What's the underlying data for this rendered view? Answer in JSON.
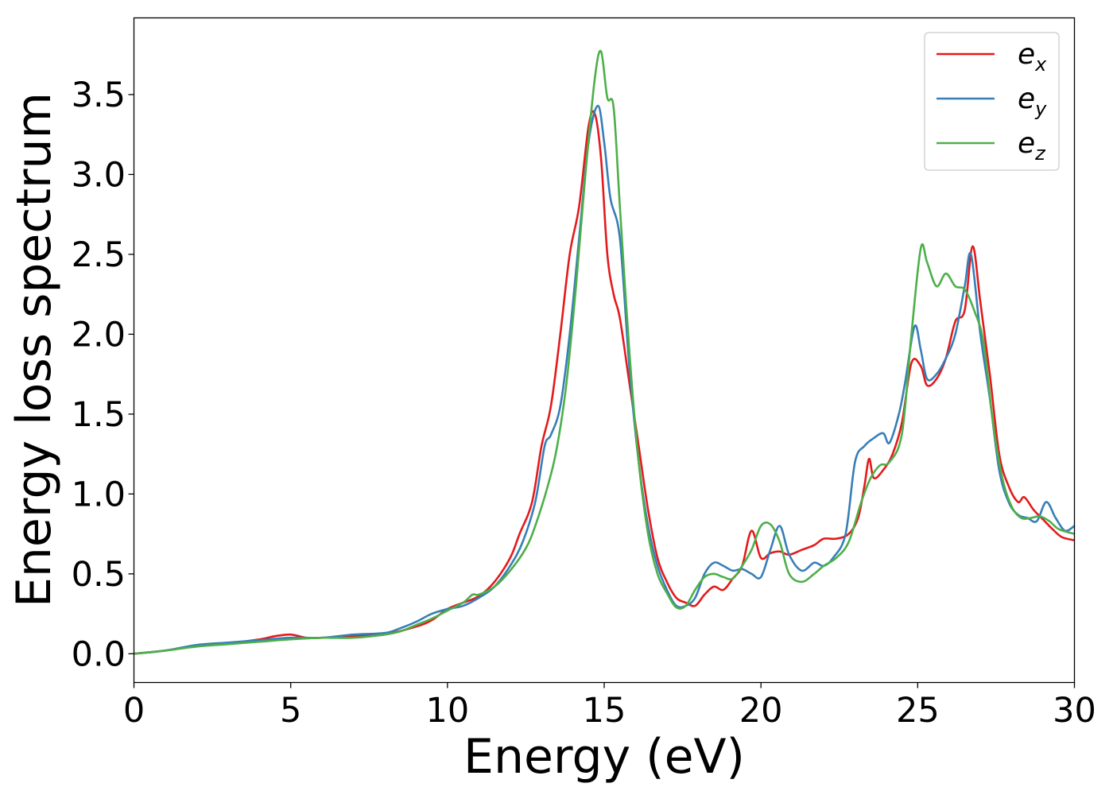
{
  "chart_data": {
    "type": "line",
    "xlabel": "Energy (eV)",
    "ylabel": "Energy loss spectrum",
    "xlim": [
      0,
      30
    ],
    "ylim": [
      -0.18,
      3.98
    ],
    "xticks": [
      0,
      5,
      10,
      15,
      20,
      25,
      30
    ],
    "xtick_labels": [
      "0",
      "5",
      "10",
      "15",
      "20",
      "25",
      "30"
    ],
    "yticks": [
      0.0,
      0.5,
      1.0,
      1.5,
      2.0,
      2.5,
      3.0,
      3.5
    ],
    "ytick_labels": [
      "0.0",
      "0.5",
      "1.0",
      "1.5",
      "2.0",
      "2.5",
      "3.0",
      "3.5"
    ],
    "grid": false,
    "legend_position": "top-right",
    "series": [
      {
        "name": "e_x",
        "label_main": "e",
        "label_sub": "x",
        "color": "#e41a1c",
        "points": [
          [
            0,
            0
          ],
          [
            1,
            0.02
          ],
          [
            2,
            0.05
          ],
          [
            3,
            0.065
          ],
          [
            4,
            0.09
          ],
          [
            4.5,
            0.11
          ],
          [
            5,
            0.12
          ],
          [
            5.5,
            0.1
          ],
          [
            6,
            0.1
          ],
          [
            7,
            0.11
          ],
          [
            8,
            0.12
          ],
          [
            9,
            0.17
          ],
          [
            9.5,
            0.21
          ],
          [
            10,
            0.28
          ],
          [
            10.5,
            0.32
          ],
          [
            11,
            0.36
          ],
          [
            11.5,
            0.45
          ],
          [
            12,
            0.6
          ],
          [
            12.3,
            0.75
          ],
          [
            12.7,
            0.95
          ],
          [
            13,
            1.3
          ],
          [
            13.3,
            1.55
          ],
          [
            13.6,
            2.0
          ],
          [
            13.9,
            2.5
          ],
          [
            14.2,
            2.8
          ],
          [
            14.5,
            3.3
          ],
          [
            14.7,
            3.38
          ],
          [
            14.9,
            3.1
          ],
          [
            15.1,
            2.5
          ],
          [
            15.3,
            2.25
          ],
          [
            15.5,
            2.1
          ],
          [
            15.8,
            1.7
          ],
          [
            16.1,
            1.3
          ],
          [
            16.4,
            0.9
          ],
          [
            16.7,
            0.6
          ],
          [
            17,
            0.45
          ],
          [
            17.3,
            0.35
          ],
          [
            17.6,
            0.32
          ],
          [
            17.9,
            0.3
          ],
          [
            18.2,
            0.37
          ],
          [
            18.5,
            0.42
          ],
          [
            18.8,
            0.4
          ],
          [
            19.1,
            0.47
          ],
          [
            19.4,
            0.55
          ],
          [
            19.7,
            0.77
          ],
          [
            20,
            0.6
          ],
          [
            20.3,
            0.63
          ],
          [
            20.6,
            0.64
          ],
          [
            20.9,
            0.62
          ],
          [
            21.3,
            0.65
          ],
          [
            21.7,
            0.68
          ],
          [
            22,
            0.72
          ],
          [
            22.4,
            0.72
          ],
          [
            22.8,
            0.75
          ],
          [
            23.1,
            0.85
          ],
          [
            23.3,
            1.05
          ],
          [
            23.45,
            1.22
          ],
          [
            23.6,
            1.1
          ],
          [
            23.9,
            1.15
          ],
          [
            24.2,
            1.25
          ],
          [
            24.5,
            1.45
          ],
          [
            24.8,
            1.82
          ],
          [
            25.1,
            1.8
          ],
          [
            25.3,
            1.68
          ],
          [
            25.6,
            1.72
          ],
          [
            25.9,
            1.85
          ],
          [
            26.2,
            2.08
          ],
          [
            26.5,
            2.15
          ],
          [
            26.75,
            2.55
          ],
          [
            27,
            2.2
          ],
          [
            27.3,
            1.75
          ],
          [
            27.6,
            1.25
          ],
          [
            27.9,
            1.05
          ],
          [
            28.2,
            0.95
          ],
          [
            28.4,
            0.98
          ],
          [
            28.7,
            0.9
          ],
          [
            29,
            0.84
          ],
          [
            29.3,
            0.78
          ],
          [
            29.6,
            0.73
          ],
          [
            30,
            0.71
          ]
        ]
      },
      {
        "name": "e_y",
        "label_main": "e",
        "label_sub": "y",
        "color": "#377eb8",
        "points": [
          [
            0,
            0
          ],
          [
            1,
            0.02
          ],
          [
            2,
            0.055
          ],
          [
            3,
            0.07
          ],
          [
            4,
            0.085
          ],
          [
            5,
            0.1
          ],
          [
            6,
            0.1
          ],
          [
            7,
            0.12
          ],
          [
            8,
            0.13
          ],
          [
            8.5,
            0.16
          ],
          [
            9,
            0.2
          ],
          [
            9.5,
            0.25
          ],
          [
            10,
            0.28
          ],
          [
            10.5,
            0.3
          ],
          [
            11,
            0.35
          ],
          [
            11.5,
            0.42
          ],
          [
            12,
            0.55
          ],
          [
            12.4,
            0.7
          ],
          [
            12.8,
            0.95
          ],
          [
            13.1,
            1.3
          ],
          [
            13.3,
            1.37
          ],
          [
            13.6,
            1.55
          ],
          [
            13.9,
            2.0
          ],
          [
            14.2,
            2.6
          ],
          [
            14.5,
            3.2
          ],
          [
            14.8,
            3.43
          ],
          [
            15,
            3.2
          ],
          [
            15.2,
            2.85
          ],
          [
            15.5,
            2.6
          ],
          [
            15.8,
            1.8
          ],
          [
            16.1,
            1.2
          ],
          [
            16.4,
            0.8
          ],
          [
            16.7,
            0.55
          ],
          [
            17,
            0.4
          ],
          [
            17.3,
            0.3
          ],
          [
            17.6,
            0.3
          ],
          [
            17.9,
            0.35
          ],
          [
            18.2,
            0.5
          ],
          [
            18.5,
            0.57
          ],
          [
            18.8,
            0.55
          ],
          [
            19.1,
            0.52
          ],
          [
            19.4,
            0.53
          ],
          [
            19.7,
            0.5
          ],
          [
            20,
            0.48
          ],
          [
            20.3,
            0.65
          ],
          [
            20.6,
            0.8
          ],
          [
            20.9,
            0.62
          ],
          [
            21.3,
            0.52
          ],
          [
            21.7,
            0.57
          ],
          [
            22,
            0.55
          ],
          [
            22.3,
            0.6
          ],
          [
            22.7,
            0.75
          ],
          [
            23,
            1.2
          ],
          [
            23.3,
            1.3
          ],
          [
            23.6,
            1.35
          ],
          [
            23.9,
            1.38
          ],
          [
            24.1,
            1.32
          ],
          [
            24.4,
            1.5
          ],
          [
            24.6,
            1.7
          ],
          [
            24.9,
            2.05
          ],
          [
            25.1,
            1.9
          ],
          [
            25.3,
            1.72
          ],
          [
            25.6,
            1.75
          ],
          [
            25.9,
            1.85
          ],
          [
            26.2,
            2.0
          ],
          [
            26.5,
            2.3
          ],
          [
            26.7,
            2.5
          ],
          [
            27,
            2.0
          ],
          [
            27.3,
            1.6
          ],
          [
            27.6,
            1.15
          ],
          [
            27.9,
            0.95
          ],
          [
            28.2,
            0.87
          ],
          [
            28.5,
            0.85
          ],
          [
            28.8,
            0.83
          ],
          [
            29.1,
            0.95
          ],
          [
            29.4,
            0.85
          ],
          [
            29.7,
            0.77
          ],
          [
            30,
            0.8
          ]
        ]
      },
      {
        "name": "e_z",
        "label_main": "e",
        "label_sub": "z",
        "color": "#4daf4a",
        "points": [
          [
            0,
            0
          ],
          [
            1,
            0.02
          ],
          [
            2,
            0.045
          ],
          [
            3,
            0.06
          ],
          [
            4,
            0.075
          ],
          [
            5,
            0.09
          ],
          [
            6,
            0.1
          ],
          [
            7,
            0.1
          ],
          [
            8,
            0.12
          ],
          [
            8.5,
            0.14
          ],
          [
            9,
            0.18
          ],
          [
            9.5,
            0.22
          ],
          [
            10,
            0.27
          ],
          [
            10.5,
            0.32
          ],
          [
            10.8,
            0.37
          ],
          [
            11,
            0.37
          ],
          [
            11.5,
            0.42
          ],
          [
            12,
            0.52
          ],
          [
            12.5,
            0.66
          ],
          [
            12.8,
            0.8
          ],
          [
            13.2,
            1.05
          ],
          [
            13.5,
            1.3
          ],
          [
            13.8,
            1.7
          ],
          [
            14.1,
            2.3
          ],
          [
            14.4,
            3.0
          ],
          [
            14.7,
            3.6
          ],
          [
            14.9,
            3.77
          ],
          [
            15.1,
            3.48
          ],
          [
            15.3,
            3.42
          ],
          [
            15.5,
            2.8
          ],
          [
            15.8,
            1.9
          ],
          [
            16.1,
            1.2
          ],
          [
            16.4,
            0.75
          ],
          [
            16.7,
            0.5
          ],
          [
            17,
            0.38
          ],
          [
            17.3,
            0.29
          ],
          [
            17.6,
            0.3
          ],
          [
            17.9,
            0.4
          ],
          [
            18.2,
            0.48
          ],
          [
            18.5,
            0.5
          ],
          [
            18.8,
            0.48
          ],
          [
            19.1,
            0.47
          ],
          [
            19.4,
            0.55
          ],
          [
            19.7,
            0.65
          ],
          [
            20,
            0.8
          ],
          [
            20.3,
            0.81
          ],
          [
            20.6,
            0.7
          ],
          [
            20.9,
            0.5
          ],
          [
            21.3,
            0.45
          ],
          [
            21.7,
            0.5
          ],
          [
            22,
            0.55
          ],
          [
            22.4,
            0.6
          ],
          [
            22.8,
            0.7
          ],
          [
            23.2,
            0.95
          ],
          [
            23.5,
            1.1
          ],
          [
            23.8,
            1.18
          ],
          [
            24.1,
            1.2
          ],
          [
            24.5,
            1.38
          ],
          [
            24.8,
            2.0
          ],
          [
            25.1,
            2.54
          ],
          [
            25.3,
            2.45
          ],
          [
            25.6,
            2.3
          ],
          [
            25.9,
            2.38
          ],
          [
            26.2,
            2.3
          ],
          [
            26.5,
            2.28
          ],
          [
            26.8,
            2.15
          ],
          [
            27.1,
            1.95
          ],
          [
            27.4,
            1.45
          ],
          [
            27.7,
            1.1
          ],
          [
            28,
            0.92
          ],
          [
            28.3,
            0.85
          ],
          [
            28.6,
            0.85
          ],
          [
            28.9,
            0.86
          ],
          [
            29.2,
            0.83
          ],
          [
            29.5,
            0.78
          ],
          [
            30,
            0.75
          ]
        ]
      }
    ]
  }
}
